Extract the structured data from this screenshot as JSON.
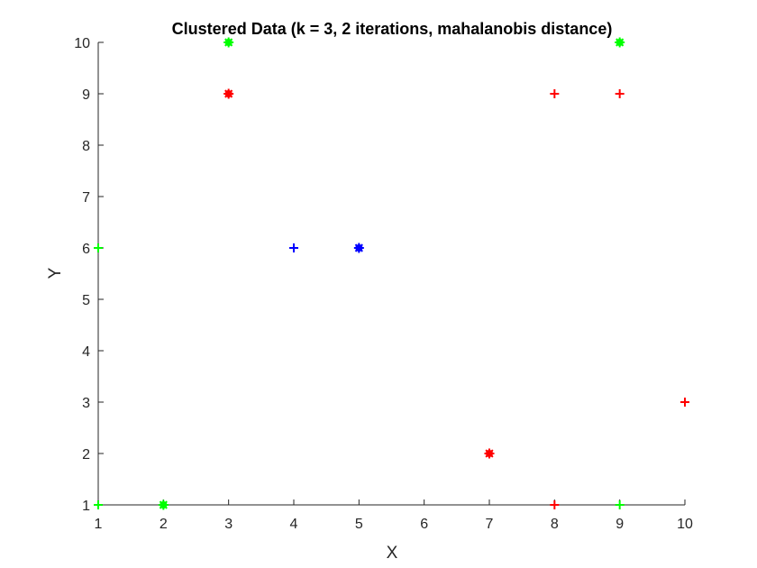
{
  "chart_data": {
    "type": "scatter",
    "title": "Clustered Data (k = 3, 2 iterations, mahalanobis distance)",
    "xlabel": "X",
    "ylabel": "Y",
    "xlim": [
      1,
      10
    ],
    "ylim": [
      1,
      10
    ],
    "xticks": [
      1,
      2,
      3,
      4,
      5,
      6,
      7,
      8,
      9,
      10
    ],
    "yticks": [
      1,
      2,
      3,
      4,
      5,
      6,
      7,
      8,
      9,
      10
    ],
    "grid": false,
    "legend": "none",
    "marker_legend": {
      "plus": "data point",
      "asterisk": "cluster centroid"
    },
    "series": [
      {
        "color": "#00ff00",
        "points": [
          {
            "x": 1,
            "y": 6,
            "marker": "plus"
          },
          {
            "x": 1,
            "y": 1,
            "marker": "plus"
          },
          {
            "x": 9,
            "y": 1,
            "marker": "plus"
          }
        ],
        "centroids": [
          {
            "x": 3,
            "y": 10
          },
          {
            "x": 9,
            "y": 10
          },
          {
            "x": 2,
            "y": 1
          }
        ]
      },
      {
        "color": "#ff0000",
        "points": [
          {
            "x": 8,
            "y": 9,
            "marker": "plus"
          },
          {
            "x": 9,
            "y": 9,
            "marker": "plus"
          },
          {
            "x": 10,
            "y": 3,
            "marker": "plus"
          },
          {
            "x": 8,
            "y": 1,
            "marker": "plus"
          }
        ],
        "centroids": [
          {
            "x": 3,
            "y": 9
          },
          {
            "x": 7,
            "y": 2
          }
        ]
      },
      {
        "color": "#0000ff",
        "points": [
          {
            "x": 4,
            "y": 6,
            "marker": "plus"
          }
        ],
        "centroids": [
          {
            "x": 5,
            "y": 6
          }
        ]
      }
    ]
  }
}
